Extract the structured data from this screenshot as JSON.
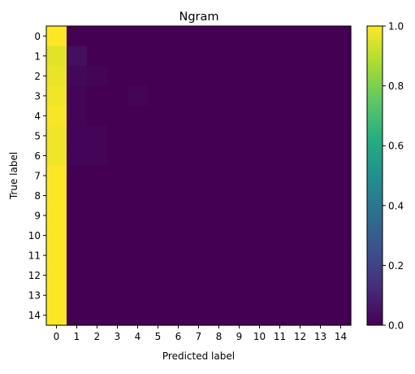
{
  "chart_data": {
    "type": "heatmap",
    "title": "Ngram",
    "xlabel": "Predicted label",
    "ylabel": "True label",
    "x_categories": [
      "0",
      "1",
      "2",
      "3",
      "4",
      "5",
      "6",
      "7",
      "8",
      "9",
      "10",
      "11",
      "12",
      "13",
      "14"
    ],
    "y_categories": [
      "0",
      "1",
      "2",
      "3",
      "4",
      "5",
      "6",
      "7",
      "8",
      "9",
      "10",
      "11",
      "12",
      "13",
      "14"
    ],
    "colormap": "viridis",
    "color_range": [
      0,
      1
    ],
    "colorbar_ticks": [
      "0.0",
      "0.2",
      "0.4",
      "0.6",
      "0.8",
      "1.0"
    ],
    "values": [
      [
        1.0,
        0.0,
        0.0,
        0.0,
        0.0,
        0.0,
        0.0,
        0.0,
        0.0,
        0.0,
        0.0,
        0.0,
        0.0,
        0.0,
        0.0
      ],
      [
        0.96,
        0.04,
        0.0,
        0.0,
        0.0,
        0.0,
        0.0,
        0.0,
        0.0,
        0.0,
        0.0,
        0.0,
        0.0,
        0.0,
        0.0
      ],
      [
        0.97,
        0.02,
        0.01,
        0.0,
        0.0,
        0.0,
        0.0,
        0.0,
        0.0,
        0.0,
        0.0,
        0.0,
        0.0,
        0.0,
        0.0
      ],
      [
        0.98,
        0.01,
        0.0,
        0.0,
        0.01,
        0.0,
        0.0,
        0.0,
        0.0,
        0.0,
        0.0,
        0.0,
        0.0,
        0.0,
        0.0
      ],
      [
        0.99,
        0.01,
        0.0,
        0.0,
        0.0,
        0.0,
        0.0,
        0.0,
        0.0,
        0.0,
        0.0,
        0.0,
        0.0,
        0.0,
        0.0
      ],
      [
        0.98,
        0.01,
        0.01,
        0.0,
        0.0,
        0.0,
        0.0,
        0.0,
        0.0,
        0.0,
        0.0,
        0.0,
        0.0,
        0.0,
        0.0
      ],
      [
        0.98,
        0.01,
        0.01,
        0.0,
        0.0,
        0.0,
        0.0,
        0.0,
        0.0,
        0.0,
        0.0,
        0.0,
        0.0,
        0.0,
        0.0
      ],
      [
        1.0,
        0.0,
        0.0,
        0.0,
        0.0,
        0.0,
        0.0,
        0.0,
        0.0,
        0.0,
        0.0,
        0.0,
        0.0,
        0.0,
        0.0
      ],
      [
        1.0,
        0.0,
        0.0,
        0.0,
        0.0,
        0.0,
        0.0,
        0.0,
        0.0,
        0.0,
        0.0,
        0.0,
        0.0,
        0.0,
        0.0
      ],
      [
        1.0,
        0.0,
        0.0,
        0.0,
        0.0,
        0.0,
        0.0,
        0.0,
        0.0,
        0.0,
        0.0,
        0.0,
        0.0,
        0.0,
        0.0
      ],
      [
        1.0,
        0.0,
        0.0,
        0.0,
        0.0,
        0.0,
        0.0,
        0.0,
        0.0,
        0.0,
        0.0,
        0.0,
        0.0,
        0.0,
        0.0
      ],
      [
        1.0,
        0.0,
        0.0,
        0.0,
        0.0,
        0.0,
        0.0,
        0.0,
        0.0,
        0.0,
        0.0,
        0.0,
        0.0,
        0.0,
        0.0
      ],
      [
        1.0,
        0.0,
        0.0,
        0.0,
        0.0,
        0.0,
        0.0,
        0.0,
        0.0,
        0.0,
        0.0,
        0.0,
        0.0,
        0.0,
        0.0
      ],
      [
        1.0,
        0.0,
        0.0,
        0.0,
        0.0,
        0.0,
        0.0,
        0.0,
        0.0,
        0.0,
        0.0,
        0.0,
        0.0,
        0.0,
        0.0
      ],
      [
        1.0,
        0.0,
        0.0,
        0.0,
        0.0,
        0.0,
        0.0,
        0.0,
        0.0,
        0.0,
        0.0,
        0.0,
        0.0,
        0.0,
        0.0
      ]
    ]
  }
}
